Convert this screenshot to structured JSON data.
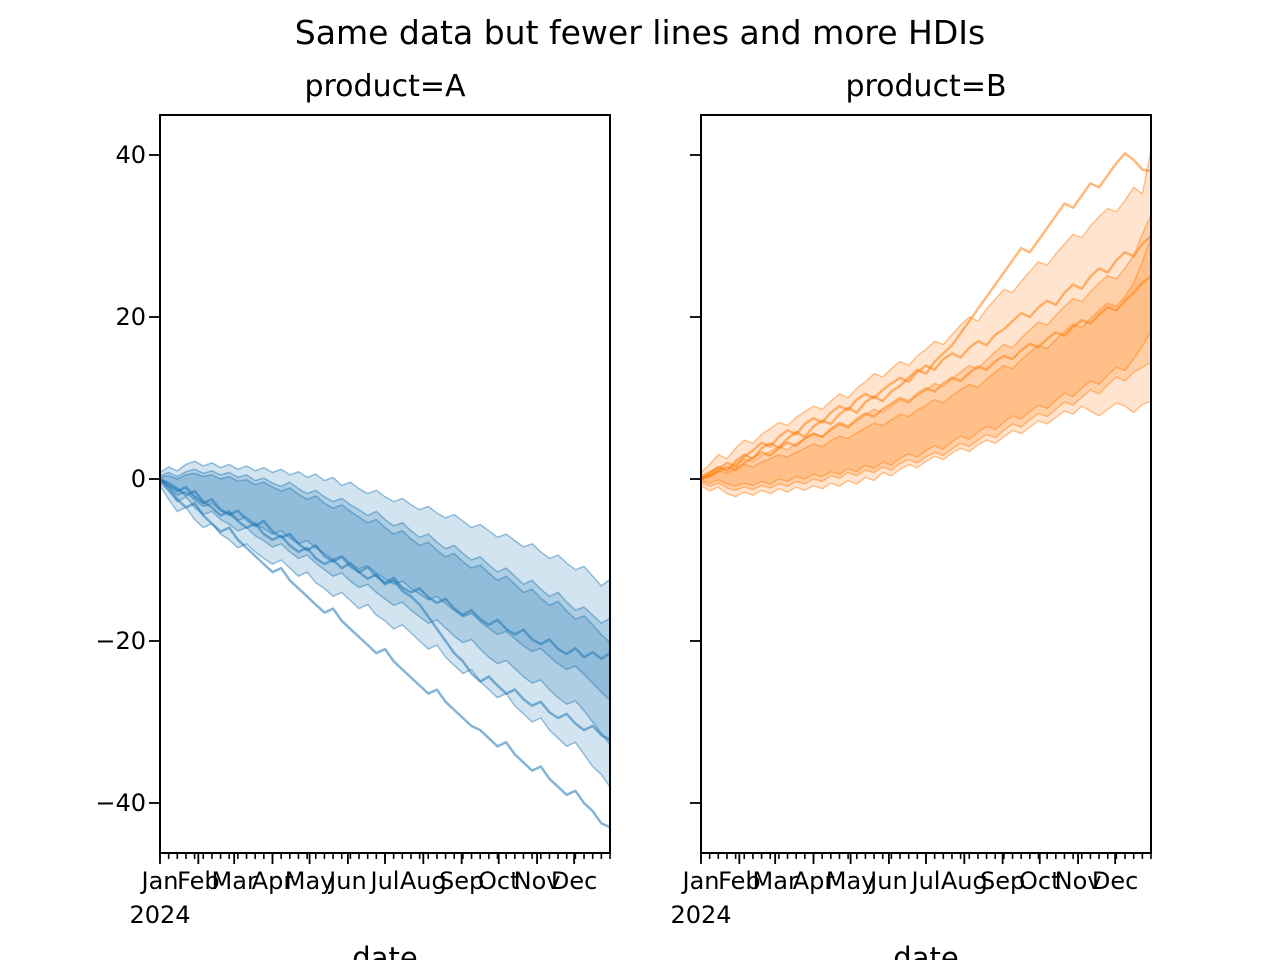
{
  "figure": {
    "title": "Same data but fewer lines and more HDIs"
  },
  "chart_data": [
    {
      "type": "line",
      "title": "product=A",
      "xlabel": "date",
      "x_offset_label": "2024",
      "x_tick_labels": [
        "Jan",
        "Feb",
        "Mar",
        "Apr",
        "May",
        "Jun",
        "Jul",
        "Aug",
        "Sep",
        "Oct",
        "Nov",
        "Dec"
      ],
      "x_unit": "weeks starting 2024-01-01",
      "y_ticks": [
        40,
        20,
        0,
        -20,
        -40
      ],
      "y_tick_labels": [
        "40",
        "20",
        "0",
        "−20",
        "−40"
      ],
      "y_tick_labels_visible": true,
      "ylim": [
        -46.2,
        44.9
      ],
      "color": "#1f77b4",
      "band_fill_opacity": 0.2,
      "line_opacity": 0.55,
      "lines": [
        [
          0,
          -0.8,
          -1.5,
          -1.0,
          -2.2,
          -3.0,
          -2.5,
          -3.8,
          -4.4,
          -3.9,
          -5.0,
          -5.8,
          -5.2,
          -6.5,
          -7.2,
          -6.8,
          -8.0,
          -8.8,
          -8.2,
          -9.5,
          -10.2,
          -9.6,
          -10.8,
          -11.5,
          -10.9,
          -12.0,
          -12.8,
          -12.2,
          -13.4,
          -14.0,
          -13.5,
          -14.6,
          -15.3,
          -14.8,
          -16.0,
          -16.8,
          -16.2,
          -17.3,
          -18.0,
          -17.4,
          -18.5,
          -19.2,
          -18.6,
          -19.8,
          -20.4,
          -19.8,
          -21.0,
          -21.6,
          -20.9,
          -22.0,
          -21.4,
          -22.2,
          -21.5
        ],
        [
          0,
          -0.5,
          -1.2,
          -2.0,
          -1.5,
          -2.8,
          -3.5,
          -4.5,
          -4.0,
          -5.2,
          -6.0,
          -5.5,
          -6.8,
          -7.5,
          -7.0,
          -8.2,
          -9.0,
          -8.5,
          -9.8,
          -10.5,
          -10.0,
          -11.0,
          -10.4,
          -11.5,
          -12.3,
          -11.8,
          -13.0,
          -12.5,
          -13.8,
          -14.5,
          -15.5,
          -17.0,
          -18.5,
          -20.0,
          -21.5,
          -22.5,
          -24.0,
          -25.0,
          -24.4,
          -25.5,
          -26.5,
          -26.0,
          -27.2,
          -28.0,
          -27.5,
          -28.8,
          -29.5,
          -29.0,
          -30.2,
          -31.0,
          -30.5,
          -31.6,
          -32.2
        ],
        [
          0,
          -1.2,
          -2.5,
          -3.5,
          -3.0,
          -4.5,
          -5.5,
          -6.5,
          -6.0,
          -7.5,
          -8.5,
          -9.5,
          -10.5,
          -11.5,
          -11.0,
          -12.5,
          -13.5,
          -14.5,
          -15.5,
          -16.5,
          -16.0,
          -17.5,
          -18.5,
          -19.5,
          -20.5,
          -21.5,
          -21.0,
          -22.5,
          -23.5,
          -24.5,
          -25.5,
          -26.5,
          -26.0,
          -27.5,
          -28.5,
          -29.5,
          -30.5,
          -31.0,
          -32.0,
          -33.0,
          -32.5,
          -34.0,
          -35.0,
          -36.0,
          -35.5,
          -37.0,
          -38.0,
          -39.0,
          -38.5,
          -40.0,
          -41.0,
          -42.5,
          -43.0
        ]
      ],
      "bands": [
        {
          "name": "outer",
          "hi": [
            0.8,
            1.5,
            1.0,
            1.8,
            2.2,
            1.6,
            2.0,
            1.4,
            1.8,
            1.2,
            1.6,
            1.0,
            1.4,
            0.8,
            1.2,
            0.5,
            0.9,
            0.2,
            0.6,
            -0.2,
            0.2,
            -0.8,
            -0.4,
            -1.2,
            -1.8,
            -1.4,
            -2.2,
            -2.8,
            -2.4,
            -3.2,
            -3.8,
            -3.4,
            -4.2,
            -4.8,
            -4.4,
            -5.2,
            -6.0,
            -5.6,
            -6.4,
            -7.2,
            -6.8,
            -7.6,
            -8.4,
            -8.0,
            -9.0,
            -9.8,
            -9.4,
            -10.4,
            -11.2,
            -10.8,
            -12.0,
            -13.2,
            -12.4
          ],
          "lo": [
            -0.8,
            -2.5,
            -4.0,
            -3.5,
            -5.0,
            -6.0,
            -5.5,
            -6.8,
            -7.5,
            -8.5,
            -8.0,
            -9.0,
            -9.8,
            -10.5,
            -10.0,
            -11.0,
            -12.0,
            -11.5,
            -12.8,
            -13.5,
            -14.5,
            -14.0,
            -15.0,
            -16.0,
            -15.5,
            -16.8,
            -17.5,
            -18.5,
            -18.0,
            -19.0,
            -20.0,
            -21.0,
            -20.5,
            -22.0,
            -23.0,
            -24.0,
            -23.5,
            -25.0,
            -26.0,
            -27.0,
            -26.5,
            -28.0,
            -29.0,
            -30.0,
            -29.5,
            -31.0,
            -32.0,
            -33.0,
            -32.5,
            -34.0,
            -35.5,
            -36.5,
            -38.0
          ]
        },
        {
          "name": "middle",
          "hi": [
            0.4,
            0.8,
            0.3,
            0.9,
            1.2,
            0.7,
            1.0,
            0.5,
            0.8,
            0.2,
            0.5,
            -0.2,
            0.1,
            -0.5,
            -0.9,
            -0.4,
            -1.2,
            -1.8,
            -1.4,
            -2.2,
            -2.8,
            -2.4,
            -3.2,
            -3.8,
            -4.5,
            -4.0,
            -5.0,
            -5.8,
            -5.4,
            -6.4,
            -7.2,
            -6.8,
            -7.8,
            -8.6,
            -8.2,
            -9.2,
            -10.0,
            -9.6,
            -10.6,
            -11.5,
            -11.0,
            -12.0,
            -13.0,
            -12.5,
            -13.6,
            -14.5,
            -14.0,
            -15.2,
            -16.2,
            -15.8,
            -16.8,
            -17.8,
            -17.2
          ],
          "lo": [
            -0.4,
            -1.5,
            -2.8,
            -2.2,
            -3.5,
            -4.4,
            -4.0,
            -5.0,
            -5.6,
            -6.4,
            -6.0,
            -7.0,
            -7.6,
            -8.4,
            -8.0,
            -9.0,
            -9.8,
            -9.4,
            -10.4,
            -11.2,
            -12.0,
            -11.6,
            -12.6,
            -13.4,
            -13.0,
            -14.0,
            -14.8,
            -15.6,
            -15.2,
            -16.2,
            -17.0,
            -17.8,
            -17.4,
            -18.4,
            -19.4,
            -20.2,
            -19.8,
            -21.0,
            -22.0,
            -22.8,
            -22.4,
            -23.4,
            -24.4,
            -25.2,
            -24.8,
            -26.0,
            -27.0,
            -27.8,
            -27.4,
            -28.6,
            -30.0,
            -31.4,
            -32.8
          ]
        },
        {
          "name": "inner",
          "hi": [
            0.2,
            0.4,
            0.0,
            0.5,
            0.7,
            0.3,
            0.5,
            0.0,
            0.3,
            -0.3,
            -0.1,
            -0.7,
            -0.4,
            -1.0,
            -1.5,
            -1.1,
            -1.9,
            -2.5,
            -2.1,
            -3.0,
            -3.6,
            -3.2,
            -4.0,
            -4.7,
            -5.4,
            -5.0,
            -6.0,
            -6.8,
            -6.4,
            -7.4,
            -8.2,
            -7.8,
            -8.8,
            -9.6,
            -9.2,
            -10.2,
            -11.0,
            -10.6,
            -11.6,
            -12.5,
            -12.0,
            -13.0,
            -14.0,
            -13.6,
            -14.7,
            -15.6,
            -15.1,
            -16.3,
            -17.3,
            -16.9,
            -18.0,
            -19.2,
            -20.2
          ],
          "lo": [
            -0.2,
            -1.0,
            -2.0,
            -1.6,
            -2.6,
            -3.4,
            -3.0,
            -3.9,
            -4.4,
            -5.1,
            -4.7,
            -5.6,
            -6.1,
            -6.8,
            -6.4,
            -7.3,
            -8.0,
            -7.6,
            -8.5,
            -9.2,
            -9.9,
            -9.5,
            -10.4,
            -11.1,
            -10.7,
            -11.6,
            -12.3,
            -13.0,
            -12.6,
            -13.5,
            -14.2,
            -14.9,
            -14.5,
            -15.4,
            -16.2,
            -17.0,
            -16.6,
            -17.6,
            -18.4,
            -19.2,
            -18.8,
            -19.7,
            -20.6,
            -21.3,
            -20.9,
            -21.9,
            -22.8,
            -23.5,
            -23.1,
            -24.1,
            -25.2,
            -26.3,
            -27.3
          ]
        }
      ]
    },
    {
      "type": "line",
      "title": "product=B",
      "xlabel": "date",
      "x_offset_label": "2024",
      "x_tick_labels": [
        "Jan",
        "Feb",
        "Mar",
        "Apr",
        "May",
        "Jun",
        "Jul",
        "Aug",
        "Sep",
        "Oct",
        "Nov",
        "Dec"
      ],
      "x_unit": "weeks starting 2024-01-01",
      "y_ticks": [
        40,
        20,
        0,
        -20,
        -40
      ],
      "y_tick_labels": [
        "40",
        "20",
        "0",
        "−20",
        "−40"
      ],
      "y_tick_labels_visible": false,
      "ylim": [
        -46.2,
        44.9
      ],
      "color": "#ff7f0e",
      "band_fill_opacity": 0.2,
      "line_opacity": 0.55,
      "lines": [
        [
          0,
          0.8,
          1.5,
          1.0,
          2.2,
          3.0,
          2.5,
          3.8,
          4.4,
          3.9,
          5.0,
          5.8,
          5.2,
          6.5,
          7.2,
          6.8,
          8.0,
          8.8,
          8.2,
          9.5,
          10.2,
          9.6,
          10.8,
          11.5,
          12.5,
          13.5,
          13.0,
          14.5,
          15.5,
          16.5,
          18.0,
          19.5,
          21.0,
          22.5,
          24.0,
          25.5,
          27.0,
          28.5,
          28.0,
          29.5,
          31.0,
          32.5,
          34.0,
          33.5,
          35.0,
          36.5,
          36.0,
          37.5,
          39.0,
          40.2,
          39.4,
          38.2,
          38.0
        ],
        [
          0,
          0.5,
          1.2,
          2.0,
          1.5,
          2.8,
          3.5,
          4.5,
          4.0,
          5.2,
          6.0,
          5.5,
          6.8,
          7.5,
          7.0,
          8.2,
          9.0,
          8.5,
          9.8,
          10.5,
          10.0,
          11.0,
          11.8,
          12.5,
          12.0,
          13.2,
          14.0,
          13.5,
          14.8,
          15.5,
          15.0,
          16.2,
          17.0,
          16.5,
          17.8,
          18.5,
          19.5,
          20.5,
          20.0,
          21.2,
          22.0,
          21.5,
          23.0,
          24.0,
          23.5,
          25.0,
          26.0,
          25.5,
          27.0,
          28.0,
          27.5,
          29.0,
          30.0
        ],
        [
          0,
          0.3,
          0.9,
          1.5,
          1.1,
          2.0,
          2.6,
          3.3,
          2.9,
          3.8,
          4.5,
          4.1,
          5.0,
          5.6,
          5.2,
          6.2,
          6.9,
          6.5,
          7.4,
          8.1,
          7.7,
          8.6,
          9.3,
          10.0,
          9.6,
          10.5,
          11.2,
          10.8,
          11.8,
          12.5,
          12.1,
          13.1,
          13.9,
          13.5,
          14.5,
          15.2,
          14.8,
          15.9,
          16.7,
          16.3,
          17.3,
          18.1,
          17.7,
          18.8,
          19.6,
          19.2,
          20.3,
          21.2,
          20.8,
          22.0,
          23.0,
          24.2,
          25.0
        ]
      ],
      "bands": [
        {
          "name": "outer",
          "hi": [
            0.8,
            1.8,
            3.0,
            2.5,
            3.8,
            4.8,
            4.4,
            5.5,
            6.2,
            7.0,
            6.6,
            7.6,
            8.3,
            9.0,
            8.6,
            9.6,
            10.5,
            10.0,
            11.2,
            12.0,
            13.0,
            12.6,
            13.6,
            14.5,
            14.0,
            15.2,
            16.0,
            17.0,
            16.6,
            17.8,
            19.0,
            20.0,
            19.5,
            21.0,
            22.2,
            23.4,
            23.0,
            24.4,
            25.6,
            26.8,
            26.4,
            27.8,
            29.0,
            30.2,
            29.8,
            31.2,
            32.4,
            33.4,
            33.0,
            34.4,
            36.0,
            35.2,
            40.6
          ],
          "lo": [
            -0.8,
            -1.5,
            -1.0,
            -1.8,
            -2.2,
            -1.6,
            -2.0,
            -1.4,
            -1.8,
            -1.2,
            -1.6,
            -1.0,
            -1.4,
            -0.8,
            -1.2,
            -0.5,
            -0.9,
            -0.2,
            -0.6,
            0.2,
            -0.2,
            0.8,
            0.4,
            1.2,
            1.8,
            1.4,
            2.2,
            2.8,
            2.4,
            3.2,
            3.8,
            3.4,
            4.2,
            4.8,
            4.4,
            5.2,
            6.0,
            5.6,
            6.4,
            7.2,
            6.8,
            7.6,
            8.4,
            8.0,
            9.0,
            8.4,
            7.8,
            8.6,
            9.4,
            9.0,
            8.2,
            9.2,
            9.6
          ]
        },
        {
          "name": "middle",
          "hi": [
            0.4,
            0.9,
            1.5,
            1.1,
            1.9,
            2.5,
            2.1,
            2.9,
            3.4,
            4.0,
            3.6,
            4.4,
            5.0,
            5.6,
            5.2,
            6.0,
            6.7,
            6.3,
            7.2,
            7.9,
            8.6,
            8.2,
            9.0,
            9.8,
            9.4,
            10.3,
            11.0,
            11.8,
            11.4,
            12.4,
            13.2,
            14.0,
            13.6,
            14.7,
            15.7,
            16.6,
            16.2,
            17.4,
            18.4,
            19.4,
            19.0,
            20.2,
            21.3,
            22.3,
            21.9,
            23.1,
            24.2,
            25.1,
            24.7,
            26.0,
            27.6,
            30.2,
            32.6
          ],
          "lo": [
            -0.4,
            -0.9,
            -0.5,
            -1.1,
            -1.4,
            -1.0,
            -1.3,
            -0.8,
            -1.1,
            -0.6,
            -0.9,
            -0.3,
            -0.6,
            0.0,
            -0.3,
            0.4,
            0.1,
            0.8,
            0.4,
            1.1,
            0.8,
            1.5,
            1.1,
            1.9,
            2.4,
            2.0,
            2.7,
            3.3,
            2.9,
            3.7,
            4.4,
            4.0,
            4.8,
            5.5,
            5.1,
            6.0,
            6.8,
            6.4,
            7.3,
            8.1,
            7.7,
            8.6,
            9.5,
            9.1,
            10.1,
            11.0,
            10.5,
            11.6,
            12.6,
            12.1,
            13.2,
            13.8,
            14.4
          ]
        },
        {
          "name": "inner",
          "hi": [
            0.2,
            0.5,
            1.0,
            0.7,
            1.3,
            1.8,
            1.5,
            2.1,
            2.5,
            3.0,
            2.7,
            3.3,
            3.8,
            4.3,
            4.0,
            4.7,
            5.3,
            5.0,
            5.7,
            6.3,
            6.9,
            6.6,
            7.3,
            8.0,
            7.7,
            8.5,
            9.1,
            9.8,
            9.4,
            10.3,
            11.0,
            11.7,
            11.3,
            12.3,
            13.2,
            14.0,
            13.6,
            14.7,
            15.6,
            16.5,
            16.1,
            17.2,
            18.2,
            19.1,
            18.7,
            19.8,
            20.8,
            21.7,
            21.3,
            22.5,
            24.2,
            26.8,
            29.8
          ],
          "lo": [
            -0.2,
            -0.5,
            -0.1,
            -0.6,
            -0.9,
            -0.5,
            -0.8,
            -0.3,
            -0.6,
            0.0,
            -0.3,
            0.3,
            0.0,
            0.6,
            0.3,
            0.9,
            0.6,
            1.3,
            0.9,
            1.7,
            1.3,
            2.1,
            1.7,
            2.6,
            3.1,
            2.7,
            3.5,
            4.1,
            3.7,
            4.6,
            5.3,
            4.9,
            5.8,
            6.5,
            6.1,
            7.0,
            7.8,
            7.4,
            8.3,
            9.1,
            8.7,
            9.7,
            10.6,
            10.2,
            11.2,
            12.1,
            11.7,
            12.8,
            13.8,
            13.4,
            14.8,
            16.4,
            18.2
          ]
        }
      ]
    }
  ]
}
